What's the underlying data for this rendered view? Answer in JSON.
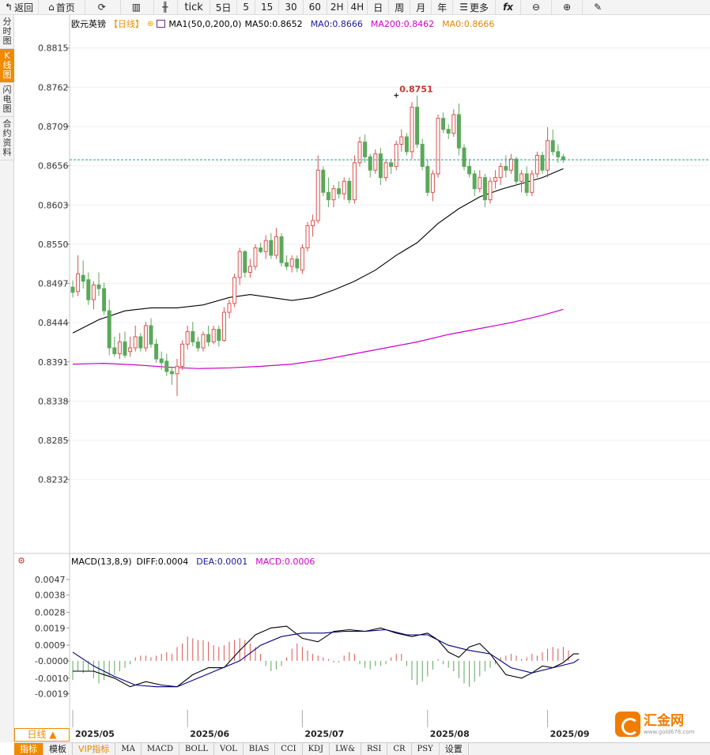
{
  "toolbar": {
    "back": "返回",
    "home": "首页",
    "tick": "tick",
    "five_day": "5日",
    "periods": [
      "5",
      "15",
      "30",
      "60",
      "2H",
      "4H",
      "日",
      "周",
      "月",
      "年"
    ],
    "more": "更多",
    "fx": "fx"
  },
  "side_tabs": [
    {
      "label": "分时图",
      "active": false
    },
    {
      "label": "K线图",
      "active": true
    },
    {
      "label": "闪电图",
      "active": false
    },
    {
      "label": "合约资料",
      "active": false
    }
  ],
  "legend": {
    "symbol": "欧元英镑",
    "period": "【日线】",
    "ma_config": "MA1(50,0,200,0)",
    "ma50": "MA50:0.8652",
    "ma0_a": "MA0:0.8666",
    "ma200": "MA200:0.8462",
    "ma0_b": "MA0:0.8666"
  },
  "macd_legend": {
    "config": "MACD(13,8,9)",
    "diff": "DIFF:0.0004",
    "dea": "DEA:0.0001",
    "macd": "MACD:0.0006"
  },
  "period_selector": "日线 ▲",
  "bottom_tabs": [
    "指标",
    "模板",
    "VIP指标",
    "MA",
    "MACD",
    "BOLL",
    "VOL",
    "BIAS",
    "CCI",
    "KDJ",
    "LW&",
    "RSI",
    "CR",
    "PSY",
    "设置"
  ],
  "watermark": {
    "name": "汇金网",
    "url": "www.gold678.com"
  },
  "colors": {
    "up": "#d9534f",
    "down": "#5ba85b",
    "ma50": "#000000",
    "ma200": "#cc00cc",
    "dea": "#000080",
    "accent": "#f08a00"
  },
  "chart_data": {
    "type": "candlestick",
    "instrument": "欧元英镑",
    "period": "日线",
    "price_axis": {
      "ticks": [
        "0.8815",
        "0.8762",
        "0.8709",
        "0.8656",
        "0.8603",
        "0.8550",
        "0.8497",
        "0.8444",
        "0.8391",
        "0.8338",
        "0.8285",
        "0.8232"
      ],
      "range": [
        0.819,
        0.8835
      ]
    },
    "x_axis": {
      "labels": [
        "2025/05",
        "2025/06",
        "2025/07",
        "2025/08",
        "2025/09"
      ],
      "label_indices": [
        0,
        22,
        44,
        68,
        91
      ]
    },
    "current_price": 0.8664,
    "high_marker": {
      "label": "0.8751",
      "value": 0.8751,
      "index": 62
    },
    "ohlc": [
      [
        0.8492,
        0.8501,
        0.8478,
        0.8485
      ],
      [
        0.8486,
        0.8535,
        0.848,
        0.851
      ],
      [
        0.8508,
        0.8528,
        0.849,
        0.85
      ],
      [
        0.8502,
        0.8512,
        0.8468,
        0.8475
      ],
      [
        0.8475,
        0.85,
        0.8462,
        0.8495
      ],
      [
        0.8495,
        0.8512,
        0.848,
        0.849
      ],
      [
        0.849,
        0.8498,
        0.8455,
        0.846
      ],
      [
        0.846,
        0.8475,
        0.84,
        0.841
      ],
      [
        0.841,
        0.8425,
        0.8398,
        0.8402
      ],
      [
        0.8402,
        0.843,
        0.8395,
        0.8418
      ],
      [
        0.8418,
        0.8432,
        0.8396,
        0.84
      ],
      [
        0.8405,
        0.8425,
        0.8398,
        0.841
      ],
      [
        0.841,
        0.844,
        0.8405,
        0.8425
      ],
      [
        0.8425,
        0.843,
        0.8405,
        0.841
      ],
      [
        0.841,
        0.8445,
        0.8405,
        0.844
      ],
      [
        0.844,
        0.845,
        0.841,
        0.8415
      ],
      [
        0.8415,
        0.8422,
        0.839,
        0.8395
      ],
      [
        0.8395,
        0.8405,
        0.838,
        0.839
      ],
      [
        0.8392,
        0.8402,
        0.8372,
        0.8378
      ],
      [
        0.8378,
        0.8385,
        0.836,
        0.8375
      ],
      [
        0.8375,
        0.8395,
        0.8345,
        0.8385
      ],
      [
        0.8385,
        0.842,
        0.838,
        0.8415
      ],
      [
        0.8415,
        0.844,
        0.8408,
        0.8432
      ],
      [
        0.8432,
        0.8445,
        0.8412,
        0.8418
      ],
      [
        0.8418,
        0.8425,
        0.8405,
        0.841
      ],
      [
        0.841,
        0.8432,
        0.8405,
        0.8428
      ],
      [
        0.8428,
        0.844,
        0.8412,
        0.8418
      ],
      [
        0.8418,
        0.844,
        0.8415,
        0.8435
      ],
      [
        0.8435,
        0.844,
        0.8412,
        0.842
      ],
      [
        0.842,
        0.8465,
        0.8418,
        0.8458
      ],
      [
        0.8458,
        0.8475,
        0.845,
        0.847
      ],
      [
        0.847,
        0.851,
        0.8465,
        0.8505
      ],
      [
        0.8505,
        0.8545,
        0.8495,
        0.854
      ],
      [
        0.854,
        0.8542,
        0.8505,
        0.8512
      ],
      [
        0.8512,
        0.853,
        0.8505,
        0.852
      ],
      [
        0.852,
        0.855,
        0.8515,
        0.8545
      ],
      [
        0.8545,
        0.8552,
        0.8538,
        0.854
      ],
      [
        0.854,
        0.8562,
        0.853,
        0.8555
      ],
      [
        0.8555,
        0.8565,
        0.853,
        0.8535
      ],
      [
        0.8535,
        0.8572,
        0.853,
        0.856
      ],
      [
        0.856,
        0.8565,
        0.852,
        0.8525
      ],
      [
        0.8525,
        0.8535,
        0.8515,
        0.852
      ],
      [
        0.852,
        0.8535,
        0.8512,
        0.853
      ],
      [
        0.853,
        0.8535,
        0.8512,
        0.8518
      ],
      [
        0.8515,
        0.855,
        0.851,
        0.8545
      ],
      [
        0.8545,
        0.858,
        0.854,
        0.8575
      ],
      [
        0.8575,
        0.859,
        0.856,
        0.8582
      ],
      [
        0.8582,
        0.867,
        0.8578,
        0.865
      ],
      [
        0.865,
        0.8655,
        0.8615,
        0.862
      ],
      [
        0.862,
        0.864,
        0.86,
        0.861
      ],
      [
        0.861,
        0.863,
        0.86,
        0.8625
      ],
      [
        0.8625,
        0.8635,
        0.8612,
        0.8618
      ],
      [
        0.8618,
        0.864,
        0.861,
        0.8635
      ],
      [
        0.8635,
        0.864,
        0.8605,
        0.861
      ],
      [
        0.861,
        0.867,
        0.8605,
        0.866
      ],
      [
        0.866,
        0.8695,
        0.8655,
        0.8688
      ],
      [
        0.8688,
        0.8698,
        0.866,
        0.8668
      ],
      [
        0.8668,
        0.8672,
        0.864,
        0.865
      ],
      [
        0.865,
        0.8678,
        0.8645,
        0.8672
      ],
      [
        0.8672,
        0.868,
        0.863,
        0.864
      ],
      [
        0.864,
        0.8665,
        0.8635,
        0.866
      ],
      [
        0.866,
        0.8665,
        0.8645,
        0.8655
      ],
      [
        0.8655,
        0.869,
        0.865,
        0.8685
      ],
      [
        0.8685,
        0.8705,
        0.8675,
        0.8695
      ],
      [
        0.8695,
        0.87,
        0.867,
        0.8675
      ],
      [
        0.8675,
        0.8742,
        0.8665,
        0.8735
      ],
      [
        0.8735,
        0.8751,
        0.868,
        0.8685
      ],
      [
        0.8685,
        0.8692,
        0.865,
        0.8655
      ],
      [
        0.8655,
        0.8665,
        0.8615,
        0.862
      ],
      [
        0.862,
        0.865,
        0.8608,
        0.8645
      ],
      [
        0.8645,
        0.8725,
        0.864,
        0.872
      ],
      [
        0.872,
        0.8728,
        0.87,
        0.8705
      ],
      [
        0.8705,
        0.8712,
        0.8692,
        0.87
      ],
      [
        0.87,
        0.8732,
        0.8695,
        0.8725
      ],
      [
        0.8725,
        0.874,
        0.867,
        0.868
      ],
      [
        0.868,
        0.8685,
        0.865,
        0.8655
      ],
      [
        0.8655,
        0.8665,
        0.864,
        0.8645
      ],
      [
        0.8645,
        0.865,
        0.8615,
        0.8625
      ],
      [
        0.8625,
        0.865,
        0.862,
        0.864
      ],
      [
        0.864,
        0.8645,
        0.86,
        0.861
      ],
      [
        0.861,
        0.864,
        0.8605,
        0.8635
      ],
      [
        0.8635,
        0.865,
        0.8625,
        0.864
      ],
      [
        0.864,
        0.866,
        0.863,
        0.8655
      ],
      [
        0.8655,
        0.867,
        0.864,
        0.865
      ],
      [
        0.865,
        0.8672,
        0.8645,
        0.8665
      ],
      [
        0.8665,
        0.8668,
        0.863,
        0.8635
      ],
      [
        0.8635,
        0.865,
        0.862,
        0.8645
      ],
      [
        0.8645,
        0.8655,
        0.8615,
        0.862
      ],
      [
        0.862,
        0.865,
        0.8615,
        0.8645
      ],
      [
        0.8645,
        0.8675,
        0.864,
        0.867
      ],
      [
        0.867,
        0.8675,
        0.8645,
        0.865
      ],
      [
        0.865,
        0.8708,
        0.864,
        0.869
      ],
      [
        0.869,
        0.8705,
        0.867,
        0.8675
      ],
      [
        0.8675,
        0.8685,
        0.866,
        0.8668
      ],
      [
        0.8668,
        0.8672,
        0.866,
        0.8664
      ]
    ],
    "ma50_curve": [
      [
        0,
        0.843
      ],
      [
        5,
        0.8448
      ],
      [
        10,
        0.846
      ],
      [
        15,
        0.8464
      ],
      [
        20,
        0.8464
      ],
      [
        25,
        0.8468
      ],
      [
        30,
        0.8478
      ],
      [
        34,
        0.8482
      ],
      [
        38,
        0.8478
      ],
      [
        42,
        0.8474
      ],
      [
        46,
        0.8478
      ],
      [
        50,
        0.8488
      ],
      [
        54,
        0.85
      ],
      [
        58,
        0.8515
      ],
      [
        62,
        0.8535
      ],
      [
        66,
        0.8552
      ],
      [
        70,
        0.8578
      ],
      [
        74,
        0.8598
      ],
      [
        78,
        0.8614
      ],
      [
        82,
        0.8624
      ],
      [
        86,
        0.8632
      ],
      [
        90,
        0.864
      ],
      [
        94,
        0.8652
      ]
    ],
    "ma200_curve": [
      [
        0,
        0.8388
      ],
      [
        6,
        0.8389
      ],
      [
        12,
        0.8387
      ],
      [
        18,
        0.8384
      ],
      [
        24,
        0.8382
      ],
      [
        30,
        0.8383
      ],
      [
        36,
        0.8385
      ],
      [
        42,
        0.8388
      ],
      [
        48,
        0.8394
      ],
      [
        54,
        0.8402
      ],
      [
        60,
        0.841
      ],
      [
        66,
        0.8418
      ],
      [
        72,
        0.8428
      ],
      [
        78,
        0.8436
      ],
      [
        84,
        0.8444
      ],
      [
        90,
        0.8454
      ],
      [
        94,
        0.8462
      ]
    ],
    "macd": {
      "ticks": [
        "0.0047",
        "0.0038",
        "0.0028",
        "0.0019",
        "0.0009",
        "-0.0000",
        "-0.0010",
        "-0.0019"
      ],
      "range": [
        -0.0027,
        0.0052
      ],
      "diff_curve": [
        [
          0,
          -0.0006
        ],
        [
          4,
          -0.0006
        ],
        [
          8,
          -0.001
        ],
        [
          11,
          -0.0015
        ],
        [
          14,
          -0.0012
        ],
        [
          17,
          -0.0014
        ],
        [
          20,
          -0.0015
        ],
        [
          23,
          -0.0008
        ],
        [
          26,
          -0.0004
        ],
        [
          29,
          -0.0004
        ],
        [
          32,
          0.0006
        ],
        [
          35,
          0.0015
        ],
        [
          38,
          0.0019
        ],
        [
          41,
          0.002
        ],
        [
          44,
          0.0013
        ],
        [
          47,
          0.0011
        ],
        [
          50,
          0.0017
        ],
        [
          53,
          0.0018
        ],
        [
          56,
          0.0017
        ],
        [
          59,
          0.0019
        ],
        [
          62,
          0.0016
        ],
        [
          65,
          0.0014
        ],
        [
          68,
          0.0016
        ],
        [
          70,
          0.0012
        ],
        [
          72,
          0.0005
        ],
        [
          74,
          0.0002
        ],
        [
          76,
          0.0008
        ],
        [
          78,
          0.001
        ],
        [
          80,
          0.0004
        ],
        [
          83,
          -0.0008
        ],
        [
          86,
          -0.001
        ],
        [
          88,
          -0.0007
        ],
        [
          90,
          -0.0003
        ],
        [
          92,
          -0.0004
        ],
        [
          94,
          -0.0001
        ],
        [
          96,
          0.0004
        ],
        [
          97,
          0.0004
        ]
      ],
      "dea_curve": [
        [
          0,
          0.0005
        ],
        [
          4,
          -0.0003
        ],
        [
          8,
          -0.0009
        ],
        [
          12,
          -0.0014
        ],
        [
          16,
          -0.0015
        ],
        [
          20,
          -0.0015
        ],
        [
          24,
          -0.001
        ],
        [
          28,
          -0.0005
        ],
        [
          32,
          0.0
        ],
        [
          36,
          0.0009
        ],
        [
          40,
          0.0014
        ],
        [
          44,
          0.0016
        ],
        [
          48,
          0.0016
        ],
        [
          52,
          0.0017
        ],
        [
          56,
          0.0017
        ],
        [
          60,
          0.0018
        ],
        [
          64,
          0.0015
        ],
        [
          68,
          0.0015
        ],
        [
          72,
          0.0009
        ],
        [
          76,
          0.0006
        ],
        [
          80,
          0.0004
        ],
        [
          84,
          -0.0004
        ],
        [
          88,
          -0.0007
        ],
        [
          92,
          -0.0004
        ],
        [
          96,
          -0.0001
        ],
        [
          97,
          0.0001
        ]
      ],
      "histogram": [
        -0.0011,
        -0.0006,
        -0.0007,
        -0.0006,
        -0.001,
        -0.0013,
        -0.0011,
        -0.0009,
        -0.0008,
        -0.0006,
        -0.0004,
        -0.0002,
        0.0002,
        0.0003,
        0.0003,
        0.0002,
        0.0003,
        0.0004,
        0.0005,
        0.0004,
        0.0008,
        0.001,
        0.0014,
        0.0013,
        0.0012,
        0.0012,
        0.0011,
        0.0009,
        0.0008,
        0.0009,
        0.0011,
        0.0012,
        0.0013,
        0.0012,
        0.001,
        0.0008,
        0.0004,
        -0.0003,
        -0.0006,
        -0.0005,
        -0.0003,
        0.0002,
        0.0007,
        0.001,
        0.0008,
        0.0006,
        0.0004,
        0.0003,
        0.0002,
        0.0001,
        -0.0001,
        -0.0001,
        0.0003,
        0.0005,
        0.0004,
        -0.0002,
        -0.0004,
        -0.0005,
        -0.0003,
        -0.0003,
        -0.0002,
        0.0002,
        0.0004,
        0.0004,
        -0.0003,
        -0.0011,
        -0.0014,
        -0.0012,
        -0.0009,
        -0.0005,
        0.0001,
        -0.0002,
        -0.0004,
        -0.0006,
        -0.001,
        -0.0013,
        -0.0015,
        -0.0012,
        -0.0009,
        -0.0006,
        -0.0004,
        -0.0002,
        0.0002,
        0.0003,
        0.0004,
        0.0003,
        0.0001,
        0.0002,
        0.0004,
        0.0003,
        0.0005,
        0.0007,
        0.0008,
        0.0007,
        0.0008,
        0.0006
      ]
    }
  }
}
